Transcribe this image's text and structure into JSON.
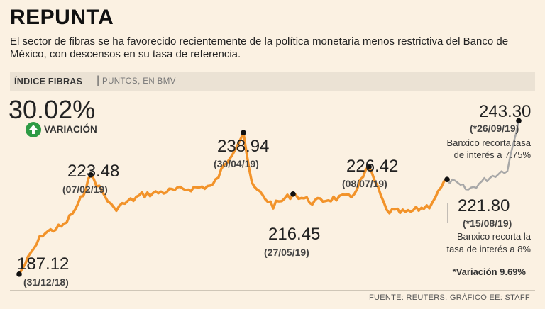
{
  "header": {
    "title": "REPUNTA",
    "subtitle": "El sector de fibras se ha favorecido recientemente de la política monetaria menos restrictiva del Banco de México, con descensos en su tasa de referencia."
  },
  "label_bar": {
    "main": "ÍNDICE FIBRAS",
    "unit": "PUNTOS, EN BMV"
  },
  "summary": {
    "value": "30.02%",
    "label": "VARIACIÓN"
  },
  "colors": {
    "orange": "#f2932a",
    "gray": "#a8a8a8",
    "dot": "#111111",
    "green": "#2e9b45"
  },
  "chart_data": {
    "type": "line",
    "title": "ÍNDICE FIBRAS",
    "ylabel": "Puntos, en BMV",
    "ylim": [
      185,
      246
    ],
    "series": [
      {
        "name": "Índice Fibras",
        "color": "#f2932a",
        "x": [
          "31/12/18",
          "07/02/19",
          "30/04/19",
          "27/05/19",
          "08/07/19",
          "15/08/19"
        ],
        "values": [
          187.12,
          223.48,
          238.94,
          216.45,
          226.42,
          221.8
        ]
      },
      {
        "name": "Índice Fibras (post-recorte)",
        "color": "#a8a8a8",
        "x": [
          "15/08/19",
          "26/09/19"
        ],
        "values": [
          221.8,
          243.3
        ]
      }
    ],
    "points": [
      {
        "id": "p1",
        "value": "187.12",
        "date": "(31/12/18)"
      },
      {
        "id": "p2",
        "value": "223.48",
        "date": "(07/02/19)"
      },
      {
        "id": "p3",
        "value": "238.94",
        "date": "(30/04/19)"
      },
      {
        "id": "p4",
        "value": "216.45",
        "date": "(27/05/19)"
      },
      {
        "id": "p5",
        "value": "226.42",
        "date": "(08/07/19)"
      },
      {
        "id": "p6",
        "value": "221.80",
        "date": "(*15/08/19)"
      },
      {
        "id": "p7",
        "value": "243.30",
        "date": "(*26/09/19)"
      }
    ],
    "annotations": {
      "cut1_line1": "Banxico recorta tasa",
      "cut1_line2": "de interés a 7.75%",
      "cut2_line1": "Banxico recorta la",
      "cut2_line2": "tasa de interés a 8%",
      "variation_note": "*Variación 9.69%"
    }
  },
  "footer": {
    "source": "FUENTE: REUTERS. GRÁFICO EE: STAFF"
  }
}
